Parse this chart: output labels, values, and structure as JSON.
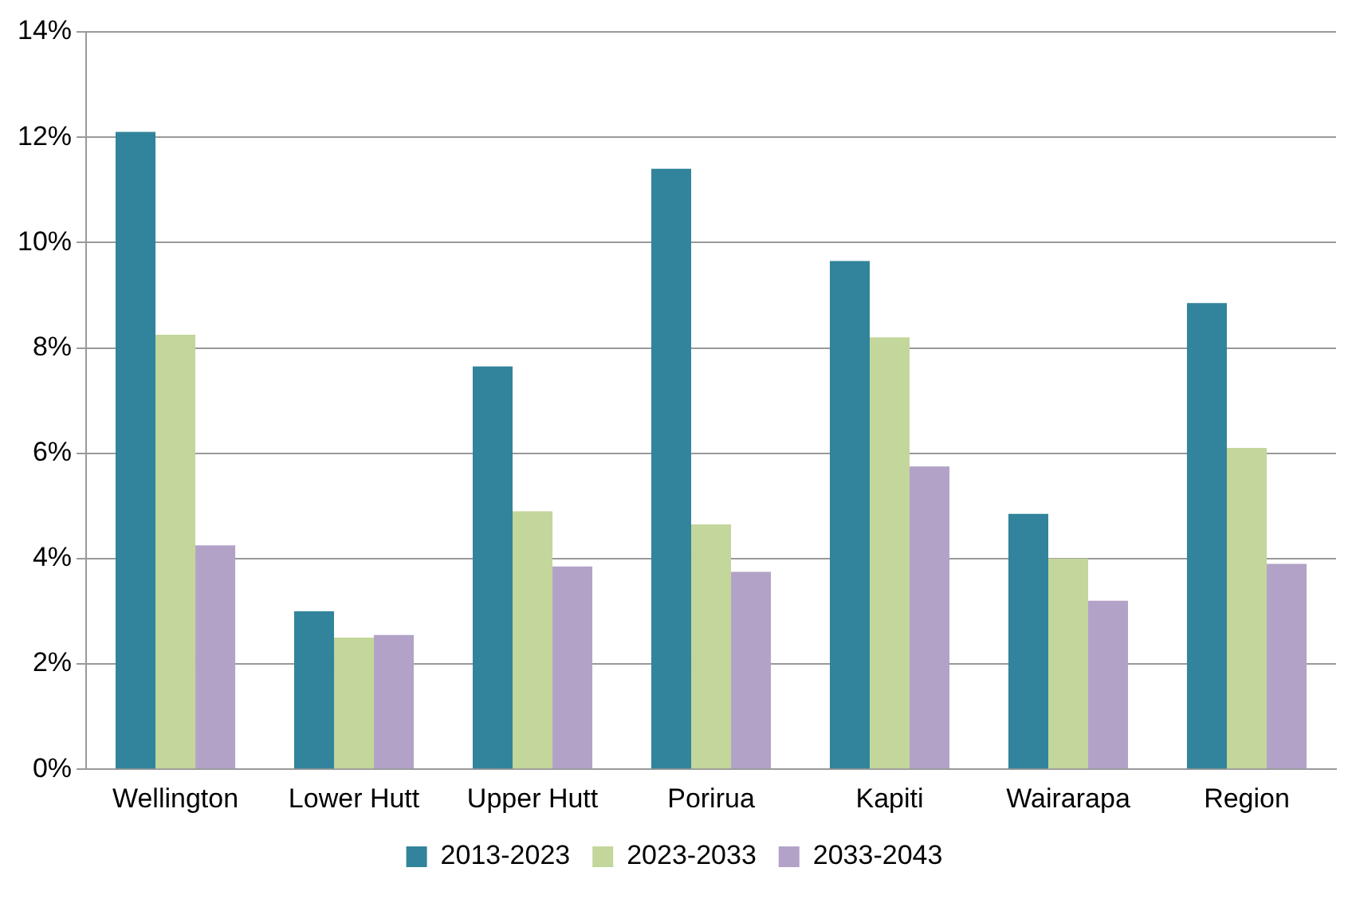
{
  "chart_data": {
    "type": "bar",
    "categories": [
      "Wellington",
      "Lower Hutt",
      "Upper Hutt",
      "Porirua",
      "Kapiti",
      "Wairarapa",
      "Region"
    ],
    "series": [
      {
        "name": "2013-2023",
        "color": "#31849b",
        "values": [
          12.1,
          3.0,
          7.65,
          11.4,
          9.65,
          4.85,
          8.85
        ]
      },
      {
        "name": "2023-2033",
        "color": "#c3d69b",
        "values": [
          8.25,
          2.5,
          4.9,
          4.65,
          8.2,
          4.0,
          6.1
        ]
      },
      {
        "name": "2033-2043",
        "color": "#b2a2c7",
        "values": [
          4.25,
          2.55,
          3.85,
          3.75,
          5.75,
          3.2,
          3.9
        ]
      }
    ],
    "ylim": [
      0,
      14
    ],
    "yticks": [
      {
        "value": 0,
        "label": "0%"
      },
      {
        "value": 2,
        "label": "2%"
      },
      {
        "value": 4,
        "label": "4%"
      },
      {
        "value": 6,
        "label": "6%"
      },
      {
        "value": 8,
        "label": "8%"
      },
      {
        "value": 10,
        "label": "10%"
      },
      {
        "value": 12,
        "label": "12%"
      },
      {
        "value": 14,
        "label": "14%"
      }
    ],
    "grid": "y",
    "legend": "bottom"
  }
}
